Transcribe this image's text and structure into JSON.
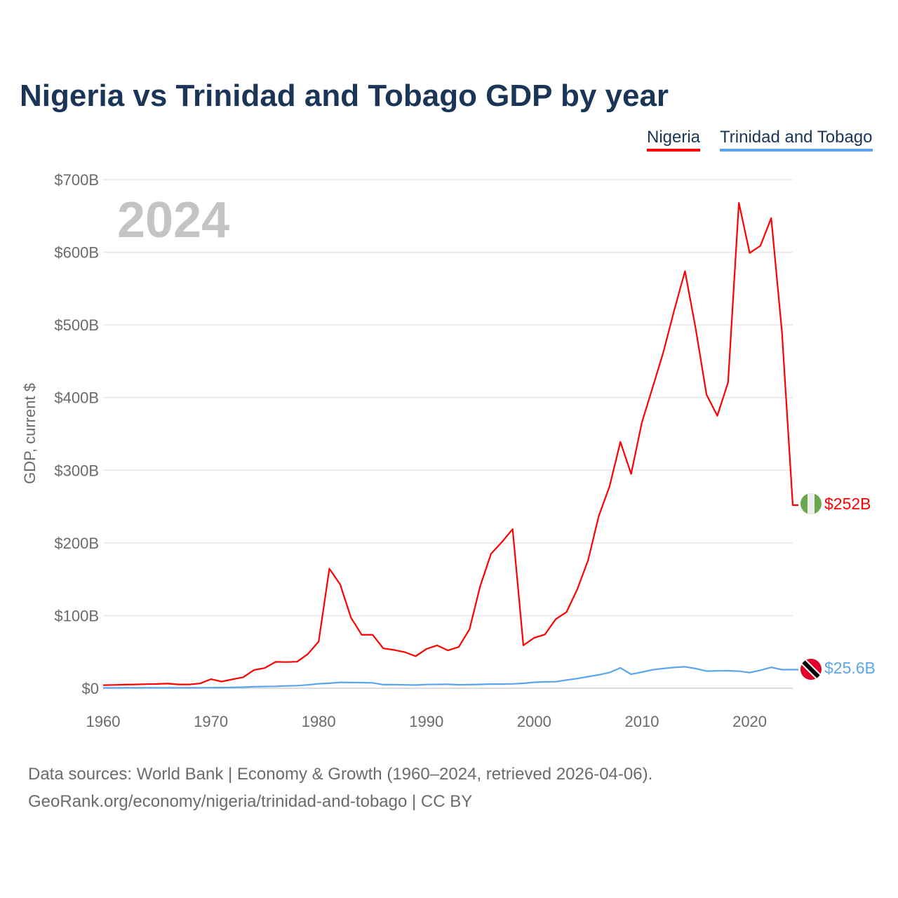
{
  "chart_data": {
    "type": "line",
    "title": "Nigeria vs Trinidad and Tobago GDP by year",
    "ylabel": "GDP, current $",
    "xlabel": "",
    "year_label": "2024",
    "ylim": [
      0,
      700
    ],
    "xlim": [
      1960,
      2024
    ],
    "yticks": [
      "$0",
      "$100B",
      "$200B",
      "$300B",
      "$400B",
      "$500B",
      "$600B",
      "$700B"
    ],
    "xticks": [
      "1960",
      "1970",
      "1980",
      "1990",
      "2000",
      "2010",
      "2020"
    ],
    "grid": true,
    "legend_position": "top-right",
    "x": [
      1960,
      1961,
      1962,
      1963,
      1964,
      1965,
      1966,
      1967,
      1968,
      1969,
      1970,
      1971,
      1972,
      1973,
      1974,
      1975,
      1976,
      1977,
      1978,
      1979,
      1980,
      1981,
      1982,
      1983,
      1984,
      1985,
      1986,
      1987,
      1988,
      1989,
      1990,
      1991,
      1992,
      1993,
      1994,
      1995,
      1996,
      1997,
      1998,
      1999,
      2000,
      2001,
      2002,
      2003,
      2004,
      2005,
      2006,
      2007,
      2008,
      2009,
      2010,
      2011,
      2012,
      2013,
      2014,
      2015,
      2016,
      2017,
      2018,
      2019,
      2020,
      2021,
      2022,
      2023,
      2024
    ],
    "series": [
      {
        "name": "Nigeria",
        "color": "#ff0000",
        "end_label": "$252B",
        "values": [
          4.2,
          4.5,
          4.9,
          5.2,
          5.6,
          5.9,
          6.4,
          5.2,
          5.2,
          6.6,
          12.5,
          9.2,
          12.3,
          15.2,
          25,
          27.8,
          36.3,
          36,
          36.5,
          47,
          64.2,
          164.5,
          142.8,
          97.1,
          73.5,
          73.7,
          54.8,
          52.7,
          49.6,
          44,
          54,
          59,
          52,
          56.8,
          81,
          141,
          185,
          201,
          219,
          59,
          69.4,
          74,
          95,
          104.9,
          136,
          176,
          237,
          278,
          339,
          295,
          366,
          414,
          463,
          520,
          574,
          494,
          404,
          375,
          421,
          668,
          599,
          609,
          647,
          490,
          252
        ]
      },
      {
        "name": "Trinidad and Tobago",
        "color": "#5aa5eb",
        "end_label": "$25.6B",
        "values": [
          0.5,
          0.5,
          0.6,
          0.6,
          0.6,
          0.6,
          0.6,
          0.6,
          0.6,
          0.7,
          0.8,
          0.9,
          1.1,
          1.4,
          2.1,
          2.4,
          2.6,
          3.2,
          3.6,
          4.6,
          6.2,
          6.9,
          8.1,
          7.8,
          7.7,
          7.4,
          4.9,
          4.9,
          4.6,
          4.3,
          5.1,
          5.3,
          5.4,
          4.7,
          4.9,
          5.3,
          5.8,
          5.7,
          6,
          6.8,
          8.2,
          8.8,
          9,
          11.3,
          13.3,
          15.9,
          18.4,
          21.6,
          28,
          19.2,
          22.2,
          25.4,
          27.2,
          28.6,
          29.5,
          27,
          23.6,
          23.9,
          24,
          23.5,
          21.5,
          24.7,
          28.8,
          25.6,
          25.6
        ]
      }
    ]
  },
  "footer": {
    "line1": "Data sources: World Bank | Economy & Growth (1960–2024, retrieved 2026-04-06).",
    "line2": "GeoRank.org/economy/nigeria/trinidad-and-tobago | CC BY"
  }
}
